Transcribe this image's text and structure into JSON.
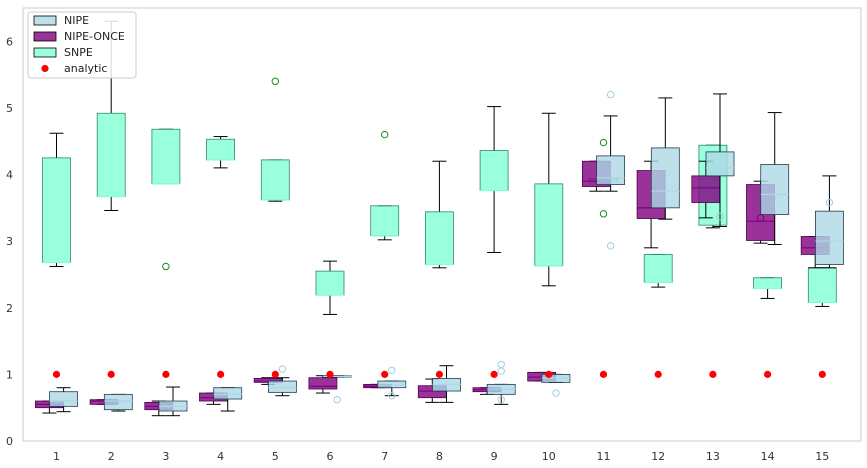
{
  "chart_data": {
    "type": "box",
    "title": "",
    "xlabel": "",
    "ylabel": "",
    "ylim": [
      0,
      6.5
    ],
    "yticks": [
      0,
      1,
      2,
      3,
      4,
      5,
      6
    ],
    "categories": [
      "1",
      "2",
      "3",
      "4",
      "5",
      "6",
      "7",
      "8",
      "9",
      "10",
      "11",
      "12",
      "13",
      "14",
      "15"
    ],
    "grid": false,
    "legend_position": "top-left",
    "legend": [
      {
        "label": "NIPE",
        "kind": "box",
        "color": "#add8e6"
      },
      {
        "label": "NIPE-ONCE",
        "kind": "box",
        "color": "#800080"
      },
      {
        "label": "SNPE",
        "kind": "box",
        "color": "#7fffd4"
      },
      {
        "label": "analytic",
        "kind": "point",
        "color": "#ff0000"
      }
    ],
    "analytic": [
      1,
      1,
      1,
      1,
      1,
      1,
      1,
      1,
      1,
      1,
      1,
      1,
      1,
      1,
      1
    ],
    "series": [
      {
        "name": "SNPE",
        "color": "#7fffd4",
        "offset": 0,
        "boxes": [
          {
            "x": 1,
            "whislo": 2.62,
            "q1": 2.68,
            "med": 2.68,
            "q3": 4.25,
            "whishi": 4.62,
            "fliers": []
          },
          {
            "x": 2,
            "whislo": 3.46,
            "q1": 3.67,
            "med": 3.67,
            "q3": 4.92,
            "whishi": 6.3,
            "fliers": []
          },
          {
            "x": 3,
            "whislo": 3.86,
            "q1": 3.86,
            "med": 3.86,
            "q3": 4.68,
            "whishi": 4.68,
            "fliers": [
              2.62
            ]
          },
          {
            "x": 4,
            "whislo": 4.1,
            "q1": 4.22,
            "med": 4.22,
            "q3": 4.53,
            "whishi": 4.57,
            "fliers": []
          },
          {
            "x": 5,
            "whislo": 3.6,
            "q1": 3.62,
            "med": 3.62,
            "q3": 4.22,
            "whishi": 4.22,
            "fliers": [
              5.4
            ]
          },
          {
            "x": 6,
            "whislo": 1.9,
            "q1": 2.19,
            "med": 2.19,
            "q3": 2.55,
            "whishi": 2.7,
            "fliers": []
          },
          {
            "x": 7,
            "whislo": 3.02,
            "q1": 3.08,
            "med": 3.08,
            "q3": 3.53,
            "whishi": 3.53,
            "fliers": [
              4.6
            ]
          },
          {
            "x": 8,
            "whislo": 2.6,
            "q1": 2.65,
            "med": 2.65,
            "q3": 3.44,
            "whishi": 4.2,
            "fliers": []
          },
          {
            "x": 9,
            "whislo": 2.83,
            "q1": 3.76,
            "med": 3.76,
            "q3": 4.36,
            "whishi": 5.02,
            "fliers": []
          },
          {
            "x": 10,
            "whislo": 2.33,
            "q1": 2.63,
            "med": 2.63,
            "q3": 3.86,
            "whishi": 4.92,
            "fliers": []
          },
          {
            "x": 11,
            "whislo": 3.86,
            "q1": 3.89,
            "med": 3.89,
            "q3": 3.94,
            "whishi": 3.94,
            "fliers": [
              4.48,
              3.41
            ]
          },
          {
            "x": 12,
            "whislo": 2.31,
            "q1": 2.38,
            "med": 2.38,
            "q3": 2.8,
            "whishi": 2.8,
            "fliers": []
          },
          {
            "x": 13,
            "whislo": 3.2,
            "q1": 3.24,
            "med": 3.97,
            "q3": 4.44,
            "whishi": 4.44,
            "fliers": []
          },
          {
            "x": 14,
            "whislo": 2.14,
            "q1": 2.29,
            "med": 2.29,
            "q3": 2.45,
            "whishi": 2.45,
            "fliers": []
          },
          {
            "x": 15,
            "whislo": 2.02,
            "q1": 2.08,
            "med": 2.08,
            "q3": 2.6,
            "whishi": 2.6,
            "fliers": []
          }
        ]
      },
      {
        "name": "NIPE-ONCE",
        "color": "#800080",
        "offset": -0.13,
        "boxes": [
          {
            "x": 1,
            "whislo": 0.42,
            "q1": 0.5,
            "med": 0.55,
            "q3": 0.6,
            "whishi": 0.6,
            "fliers": []
          },
          {
            "x": 2,
            "whislo": 0.55,
            "q1": 0.55,
            "med": 0.6,
            "q3": 0.62,
            "whishi": 0.62,
            "fliers": []
          },
          {
            "x": 3,
            "whislo": 0.38,
            "q1": 0.47,
            "med": 0.52,
            "q3": 0.58,
            "whishi": 0.6,
            "fliers": []
          },
          {
            "x": 4,
            "whislo": 0.55,
            "q1": 0.6,
            "med": 0.65,
            "q3": 0.72,
            "whishi": 0.72,
            "fliers": []
          },
          {
            "x": 5,
            "whislo": 0.85,
            "q1": 0.88,
            "med": 0.9,
            "q3": 0.94,
            "whishi": 0.95,
            "fliers": []
          },
          {
            "x": 6,
            "whislo": 0.72,
            "q1": 0.78,
            "med": 0.82,
            "q3": 0.95,
            "whishi": 0.98,
            "fliers": []
          },
          {
            "x": 7,
            "whislo": 0.8,
            "q1": 0.8,
            "med": 0.82,
            "q3": 0.85,
            "whishi": 0.85,
            "fliers": []
          },
          {
            "x": 8,
            "whislo": 0.58,
            "q1": 0.65,
            "med": 0.75,
            "q3": 0.83,
            "whishi": 0.93,
            "fliers": []
          },
          {
            "x": 9,
            "whislo": 0.7,
            "q1": 0.74,
            "med": 0.77,
            "q3": 0.8,
            "whishi": 0.8,
            "fliers": []
          },
          {
            "x": 10,
            "whislo": 0.9,
            "q1": 0.9,
            "med": 0.96,
            "q3": 1.03,
            "whishi": 1.03,
            "fliers": []
          },
          {
            "x": 11,
            "whislo": 3.75,
            "q1": 3.82,
            "med": 3.9,
            "q3": 4.2,
            "whishi": 4.2,
            "fliers": []
          },
          {
            "x": 12,
            "whislo": 2.9,
            "q1": 3.34,
            "med": 3.5,
            "q3": 4.06,
            "whishi": 4.2,
            "fliers": []
          },
          {
            "x": 13,
            "whislo": 3.35,
            "q1": 3.58,
            "med": 3.8,
            "q3": 3.98,
            "whishi": 4.2,
            "fliers": []
          },
          {
            "x": 14,
            "whislo": 2.97,
            "q1": 3.01,
            "med": 3.3,
            "q3": 3.85,
            "whishi": 3.9,
            "fliers": [
              3.35
            ]
          },
          {
            "x": 15,
            "whislo": 2.6,
            "q1": 2.8,
            "med": 2.9,
            "q3": 3.07,
            "whishi": 3.07,
            "fliers": []
          }
        ]
      },
      {
        "name": "NIPE",
        "color": "#add8e6",
        "offset": 0.13,
        "boxes": [
          {
            "x": 1,
            "whislo": 0.44,
            "q1": 0.52,
            "med": 0.6,
            "q3": 0.74,
            "whishi": 0.8,
            "fliers": []
          },
          {
            "x": 2,
            "whislo": 0.45,
            "q1": 0.47,
            "med": 0.6,
            "q3": 0.7,
            "whishi": 0.7,
            "fliers": []
          },
          {
            "x": 3,
            "whislo": 0.38,
            "q1": 0.45,
            "med": 0.52,
            "q3": 0.6,
            "whishi": 0.81,
            "fliers": []
          },
          {
            "x": 4,
            "whislo": 0.45,
            "q1": 0.63,
            "med": 0.7,
            "q3": 0.8,
            "whishi": 0.8,
            "fliers": []
          },
          {
            "x": 5,
            "whislo": 0.68,
            "q1": 0.73,
            "med": 0.8,
            "q3": 0.9,
            "whishi": 0.95,
            "fliers": [
              1.08
            ]
          },
          {
            "x": 6,
            "whislo": 0.96,
            "q1": 0.96,
            "med": 0.97,
            "q3": 0.98,
            "whishi": 0.98,
            "fliers": [
              0.62
            ]
          },
          {
            "x": 7,
            "whislo": 0.68,
            "q1": 0.8,
            "med": 0.84,
            "q3": 0.9,
            "whishi": 0.9,
            "fliers": [
              0.68,
              1.06
            ]
          },
          {
            "x": 8,
            "whislo": 0.58,
            "q1": 0.75,
            "med": 0.85,
            "q3": 0.94,
            "whishi": 1.13,
            "fliers": []
          },
          {
            "x": 9,
            "whislo": 0.55,
            "q1": 0.7,
            "med": 0.78,
            "q3": 0.85,
            "whishi": 0.85,
            "fliers": [
              0.62,
              1.05,
              1.15
            ]
          },
          {
            "x": 10,
            "whislo": 0.88,
            "q1": 0.88,
            "med": 0.95,
            "q3": 1.0,
            "whishi": 1.0,
            "fliers": [
              0.72
            ]
          },
          {
            "x": 11,
            "whislo": 3.75,
            "q1": 3.85,
            "med": 3.95,
            "q3": 4.28,
            "whishi": 4.88,
            "fliers": [
              5.2,
              2.93
            ]
          },
          {
            "x": 12,
            "whislo": 3.33,
            "q1": 3.5,
            "med": 3.75,
            "q3": 4.4,
            "whishi": 5.15,
            "fliers": []
          },
          {
            "x": 13,
            "whislo": 3.22,
            "q1": 3.98,
            "med": 4.1,
            "q3": 4.34,
            "whishi": 5.21,
            "fliers": [
              3.37
            ]
          },
          {
            "x": 14,
            "whislo": 2.95,
            "q1": 3.4,
            "med": 3.7,
            "q3": 4.15,
            "whishi": 4.93,
            "fliers": []
          },
          {
            "x": 15,
            "whislo": 2.6,
            "q1": 2.65,
            "med": 3.0,
            "q3": 3.45,
            "whishi": 3.98,
            "fliers": [
              3.58
            ]
          }
        ]
      }
    ]
  }
}
